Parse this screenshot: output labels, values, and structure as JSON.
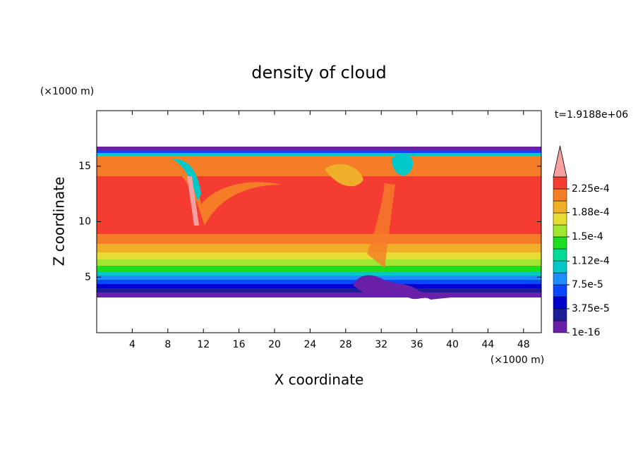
{
  "chart_data": {
    "type": "contour",
    "title": "density of cloud",
    "x_label": "X coordinate",
    "y_label": "Z coordinate",
    "x_unit": "(×1000 m)",
    "y_unit": "(×1000 m)",
    "time_label": "t=1.9188e+06",
    "xlim": [
      0,
      50
    ],
    "ylim": [
      0,
      20
    ],
    "xticks": [
      4,
      8,
      12,
      16,
      20,
      24,
      28,
      32,
      36,
      40,
      44,
      48
    ],
    "yticks": [
      5,
      10,
      15
    ],
    "colorbar": {
      "clim": [
        0,
        0.00024375
      ],
      "levels": [
        1e-16,
        1.875e-05,
        3.75e-05,
        5.625e-05,
        7.5e-05,
        9.375e-05,
        0.0001125,
        0.00013125,
        0.00015,
        0.00016875,
        0.0001875,
        0.00020625,
        0.000225,
        0.00024375
      ],
      "colors": [
        "#6a1fa8",
        "#1e1e96",
        "#0000cd",
        "#0a46ff",
        "#1e8cff",
        "#00c8c8",
        "#00dc96",
        "#1edc1e",
        "#a0e632",
        "#e6dc32",
        "#f0af28",
        "#f57d28",
        "#f53c32"
      ],
      "over_color": "#f4a0a0",
      "ticks": [
        {
          "value": 1e-16,
          "label": "1e-16"
        },
        {
          "value": 3.75e-05,
          "label": "3.75e-5"
        },
        {
          "value": 7.5e-05,
          "label": "7.5e-5"
        },
        {
          "value": 0.000112,
          "label": "1.12e-4"
        },
        {
          "value": 0.00015,
          "label": "1.5e-4"
        },
        {
          "value": 0.000188,
          "label": "1.88e-4"
        },
        {
          "value": 0.000225,
          "label": "2.25e-4"
        }
      ]
    }
  }
}
